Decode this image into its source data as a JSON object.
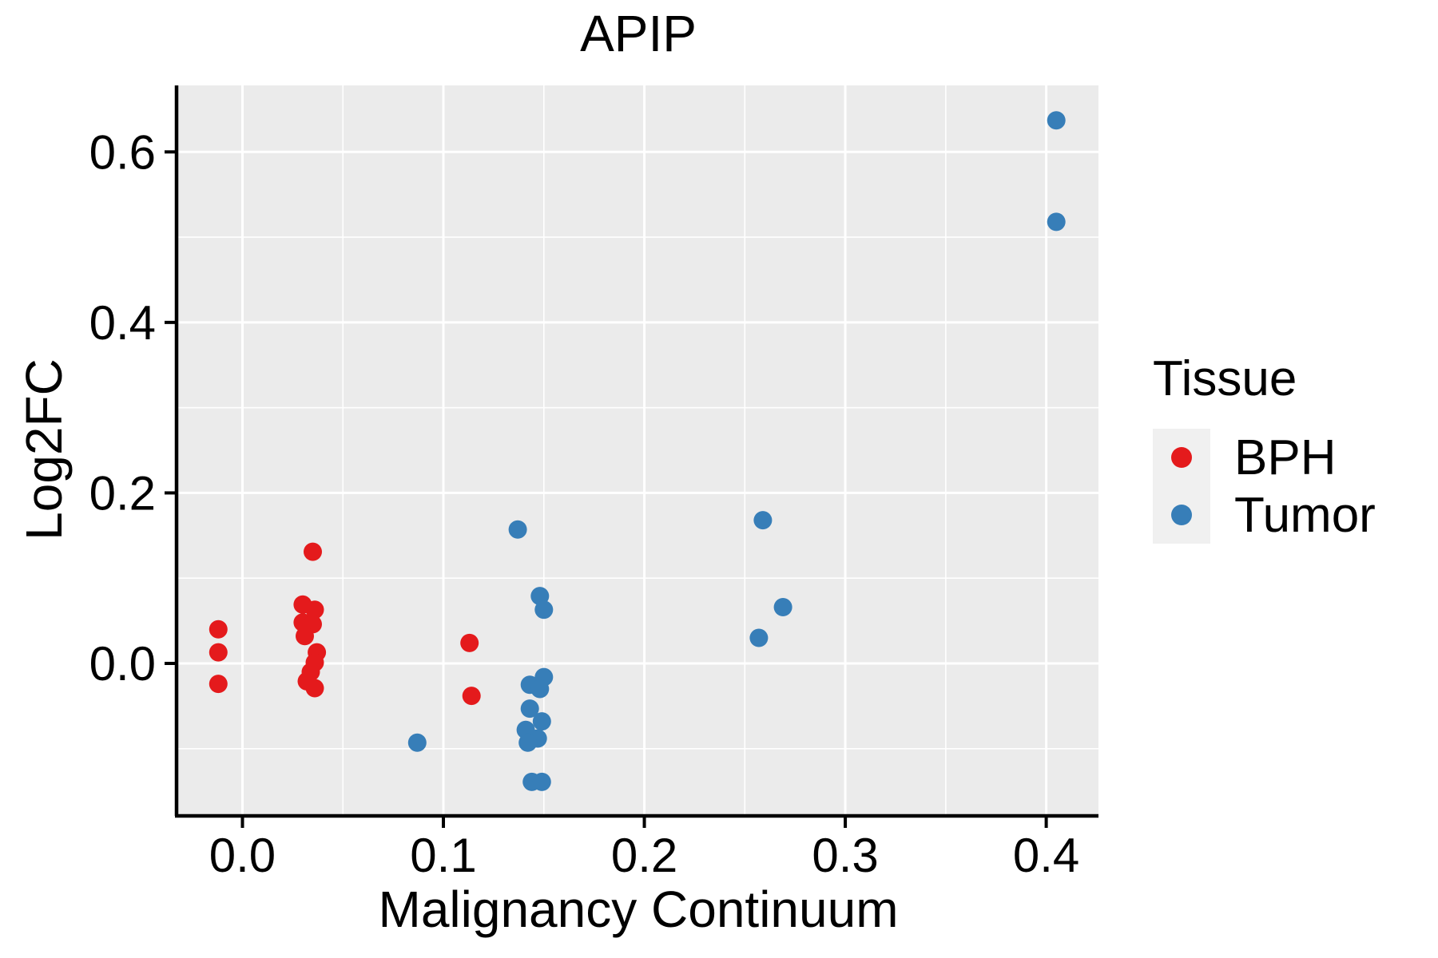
{
  "chart_data": {
    "type": "scatter",
    "title": "APIP",
    "xlabel": "Malignancy Continuum",
    "ylabel": "Log2FC",
    "xlim": [
      -0.032,
      0.426
    ],
    "ylim": [
      -0.177,
      0.678
    ],
    "x_ticks": {
      "values": [
        0.0,
        0.1,
        0.2,
        0.3,
        0.4
      ],
      "labels": [
        "0.0",
        "0.1",
        "0.2",
        "0.3",
        "0.4"
      ]
    },
    "y_ticks": {
      "values": [
        0.0,
        0.2,
        0.4,
        0.6
      ],
      "labels": [
        "0.0",
        "0.2",
        "0.4",
        "0.6"
      ]
    },
    "x_minor_gridlines": [
      0.05,
      0.15,
      0.25,
      0.35
    ],
    "y_minor_gridlines": [
      -0.1,
      0.1,
      0.3,
      0.5
    ],
    "grid": "major+minor",
    "panel_background": "#EBEBEB",
    "gridline_color": "#FFFFFF",
    "axis_color": "#000000",
    "legend": {
      "title": "Tissue",
      "position": "right"
    },
    "series": [
      {
        "name": "BPH",
        "color": "#E41A1C",
        "points": [
          [
            -0.012,
            0.04
          ],
          [
            -0.012,
            0.013
          ],
          [
            -0.012,
            -0.024
          ],
          [
            0.035,
            0.131
          ],
          [
            0.03,
            0.069
          ],
          [
            0.036,
            0.063
          ],
          [
            0.03,
            0.048
          ],
          [
            0.035,
            0.046
          ],
          [
            0.031,
            0.032
          ],
          [
            0.037,
            0.013
          ],
          [
            0.036,
            0.001
          ],
          [
            0.034,
            -0.01
          ],
          [
            0.032,
            -0.021
          ],
          [
            0.036,
            -0.029
          ],
          [
            0.113,
            0.024
          ],
          [
            0.114,
            -0.038
          ]
        ]
      },
      {
        "name": "Tumor",
        "color": "#377EB8",
        "points": [
          [
            0.087,
            -0.093
          ],
          [
            0.137,
            0.157
          ],
          [
            0.148,
            0.079
          ],
          [
            0.15,
            0.063
          ],
          [
            0.15,
            -0.016
          ],
          [
            0.143,
            -0.025
          ],
          [
            0.148,
            -0.03
          ],
          [
            0.143,
            -0.053
          ],
          [
            0.149,
            -0.068
          ],
          [
            0.141,
            -0.078
          ],
          [
            0.147,
            -0.088
          ],
          [
            0.142,
            -0.093
          ],
          [
            0.144,
            -0.139
          ],
          [
            0.149,
            -0.139
          ],
          [
            0.259,
            0.168
          ],
          [
            0.269,
            0.066
          ],
          [
            0.257,
            0.03
          ],
          [
            0.405,
            0.637
          ],
          [
            0.405,
            0.518
          ]
        ]
      }
    ]
  }
}
